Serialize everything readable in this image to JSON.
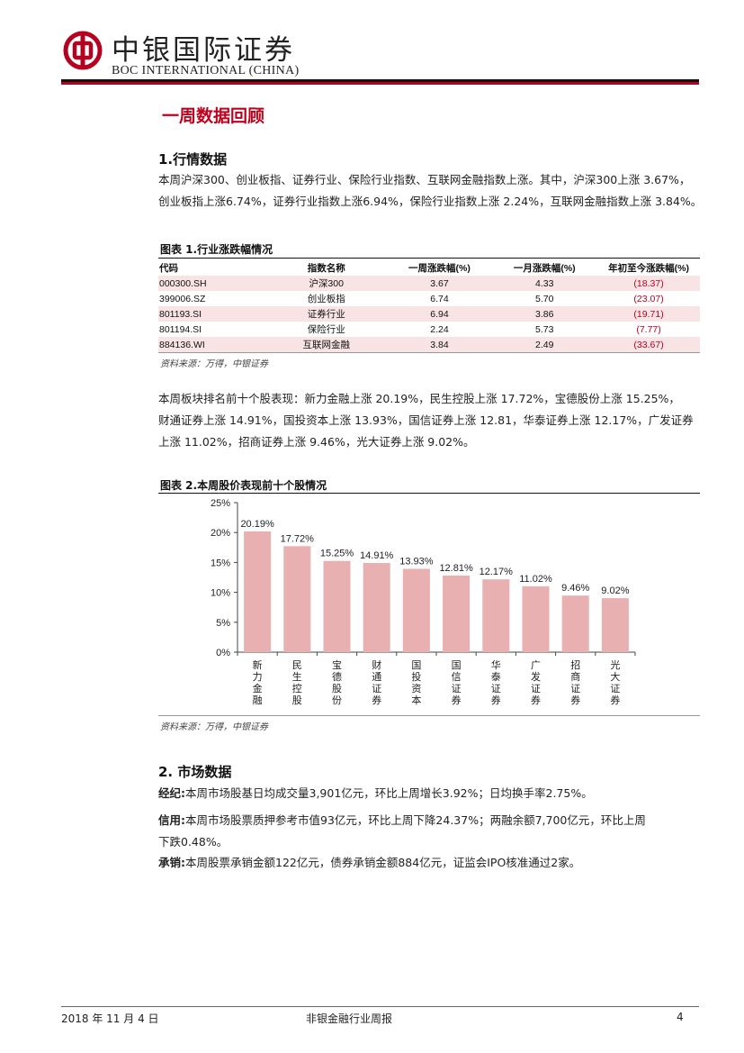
{
  "header": {
    "brand_cn": "中银国际证券",
    "brand_en": "BOC INTERNATIONAL (CHINA)",
    "colors": {
      "brand_red": "#b5001f"
    }
  },
  "section_title": "一周数据回顾",
  "section1": {
    "heading": "1.行情数据",
    "paragraph_lines": [
      "本周沪深300、创业板指、证券行业、保险行业指数、互联网金融指数上涨。其中，沪深300上涨 3.67%，",
      "创业板指上涨6.74%，证券行业指数上涨6.94%，保险行业指数上涨 2.24%，互联网金融指数上涨 3.84%。"
    ],
    "table": {
      "caption": "图表 1.行业涨跌幅情况",
      "headers": [
        "代码",
        "指数名称",
        "一周涨跌幅(%)",
        "一月涨跌幅(%)",
        "年初至今涨跌幅(%)"
      ],
      "rows": [
        [
          "000300.SH",
          "沪深300",
          "3.67",
          "4.33",
          "(18.37)"
        ],
        [
          "399006.SZ",
          "创业板指",
          "6.74",
          "5.70",
          "(23.07)"
        ],
        [
          "801193.SI",
          "证券行业",
          "6.94",
          "3.86",
          "(19.71)"
        ],
        [
          "801194.SI",
          "保险行业",
          "2.24",
          "5.73",
          "(7.77)"
        ],
        [
          "884136.WI",
          "互联网金融",
          "3.84",
          "2.49",
          "(33.67)"
        ]
      ],
      "source": "资料来源：万得，中银证券"
    },
    "paragraph2_lines": [
      "本周板块排名前十个股表现：新力金融上涨 20.19%，民生控股上涨 17.72%，宝德股份上涨 15.25%，",
      "财通证券上涨 14.91%，国投资本上涨 13.93%，国信证券上涨 12.81，华泰证券上涨 12.17%，广发证券",
      "上涨 11.02%，招商证券上涨 9.46%，光大证券上涨 9.02%。"
    ],
    "chart_caption": "图表 2.本周股价表现前十个股情况",
    "chart_source": "资料来源：万得，中银证券"
  },
  "chart_data": {
    "type": "bar",
    "categories": [
      "新力金融",
      "民生控股",
      "宝德股份",
      "财通证券",
      "国投资本",
      "国信证券",
      "华泰证券",
      "广发证券",
      "招商证券",
      "光大证券"
    ],
    "values": [
      20.19,
      17.72,
      15.25,
      14.91,
      13.93,
      12.81,
      12.17,
      11.02,
      9.46,
      9.02
    ],
    "data_labels": [
      "20.19%",
      "17.72%",
      "15.25%",
      "14.91%",
      "13.93%",
      "12.81%",
      "12.17%",
      "11.02%",
      "9.46%",
      "9.02%"
    ],
    "y_ticks": [
      "0%",
      "5%",
      "10%",
      "15%",
      "20%",
      "25%"
    ],
    "ylim": [
      0,
      25
    ],
    "grid": false,
    "bar_color": "#e8b0b0"
  },
  "section2": {
    "heading": "2. 市场数据",
    "items": [
      {
        "label": "经纪:",
        "lines": [
          "本周市场股基日均成交量3,901亿元，环比上周增长3.92%；日均换手率2.75%。"
        ]
      },
      {
        "label": "信用:",
        "lines": [
          "本周市场股票质押参考市值93亿元，环比上周下降24.37%；两融余额7,700亿元，环比上周",
          "下跌0.48%。"
        ]
      },
      {
        "label": "承销:",
        "lines": [
          "本周股票承销金额122亿元，债券承销金额884亿元，证监会IPO核准通过2家。"
        ]
      }
    ]
  },
  "footer": {
    "date": "2018 年 11 月 4 日",
    "title": "非银金融行业周报",
    "page": "4"
  }
}
